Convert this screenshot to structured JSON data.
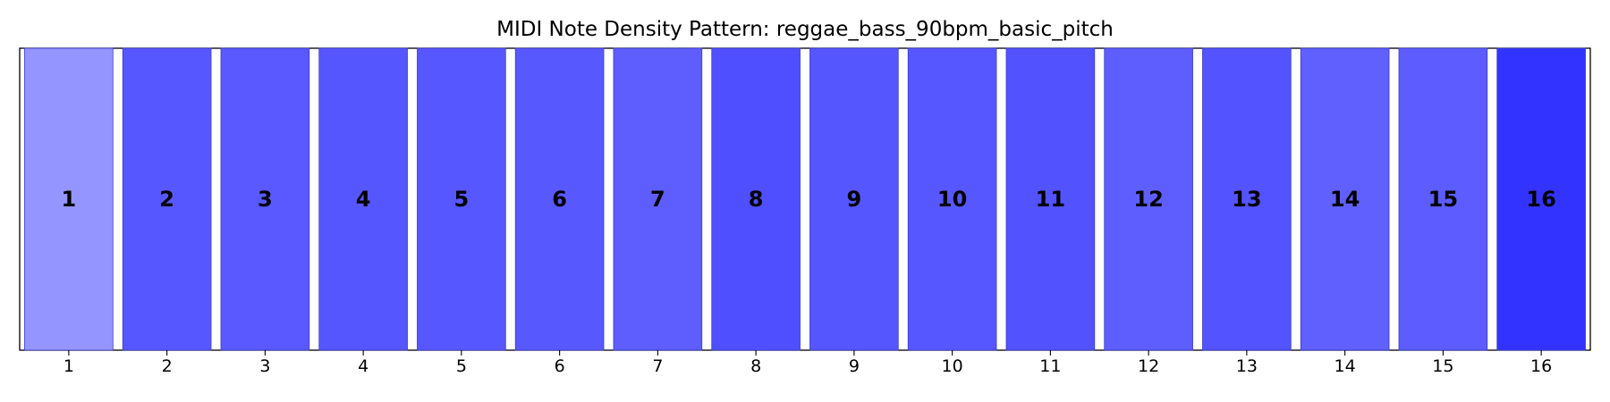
{
  "chart_data": {
    "type": "bar",
    "title": "MIDI Note Density Pattern: reggae_bass_90bpm_basic_pitch",
    "xlabel": "",
    "ylabel": "",
    "categories": [
      "1",
      "2",
      "3",
      "4",
      "5",
      "6",
      "7",
      "8",
      "9",
      "10",
      "11",
      "12",
      "13",
      "14",
      "15",
      "16"
    ],
    "values": [
      1,
      1,
      1,
      1,
      1,
      1,
      1,
      1,
      1,
      1,
      1,
      1,
      1,
      1,
      1,
      1
    ],
    "bar_labels": [
      "1",
      "2",
      "3",
      "4",
      "5",
      "6",
      "7",
      "8",
      "9",
      "10",
      "11",
      "12",
      "13",
      "14",
      "15",
      "16"
    ],
    "bar_colors": [
      "#9595ff",
      "#5757ff",
      "#5959ff",
      "#5656ff",
      "#5757ff",
      "#5858ff",
      "#5e5eff",
      "#4f4fff",
      "#5656ff",
      "#5757ff",
      "#5252ff",
      "#5e5eff",
      "#5353ff",
      "#6060ff",
      "#5c5cff",
      "#3333ff"
    ],
    "ylim": [
      0,
      1
    ],
    "y_ticks_visible": false,
    "grid": false,
    "legend": "none"
  }
}
